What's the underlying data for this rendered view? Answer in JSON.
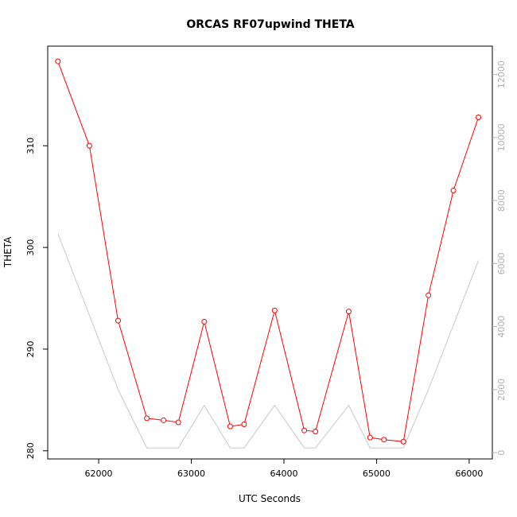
{
  "chart_data": {
    "type": "line",
    "title": "ORCAS RF07upwind THETA",
    "xlabel": "UTC Seconds",
    "ylabel": "THETA",
    "xlim": [
      61450,
      66250
    ],
    "ylim": [
      279.2,
      319.8
    ],
    "y2lim": [
      -200,
      12900
    ],
    "x_ticks": [
      62000,
      63000,
      64000,
      65000,
      66000
    ],
    "y_ticks": [
      280,
      290,
      300,
      310
    ],
    "y2_ticks": [
      0,
      2000,
      4000,
      6000,
      8000,
      10000,
      12000
    ],
    "grid": false,
    "colors": {
      "theta": "#ff0000",
      "altitude": "#c8c8c8",
      "right_axis": "#b0b0b0"
    },
    "series": [
      {
        "axis": "left",
        "style": "line-with-open-circles",
        "x": [
          61560,
          61900,
          62210,
          62520,
          62700,
          62860,
          63140,
          63420,
          63570,
          63900,
          64220,
          64340,
          64700,
          64930,
          65080,
          65290,
          65560,
          65830,
          66100
        ],
        "values": [
          318.3,
          310.0,
          292.8,
          283.2,
          283.0,
          282.8,
          292.7,
          282.4,
          282.6,
          293.8,
          282.0,
          281.9,
          293.7,
          281.3,
          281.1,
          280.9,
          295.3,
          305.6,
          312.8
        ]
      },
      {
        "axis": "right",
        "style": "line",
        "x": [
          61560,
          62210,
          62520,
          62860,
          63140,
          63420,
          63570,
          63900,
          64220,
          64340,
          64700,
          64930,
          65290,
          65560,
          66100
        ],
        "values": [
          6950,
          2000,
          150,
          150,
          1500,
          150,
          150,
          1500,
          150,
          150,
          1500,
          150,
          150,
          2000,
          6100
        ]
      }
    ]
  }
}
